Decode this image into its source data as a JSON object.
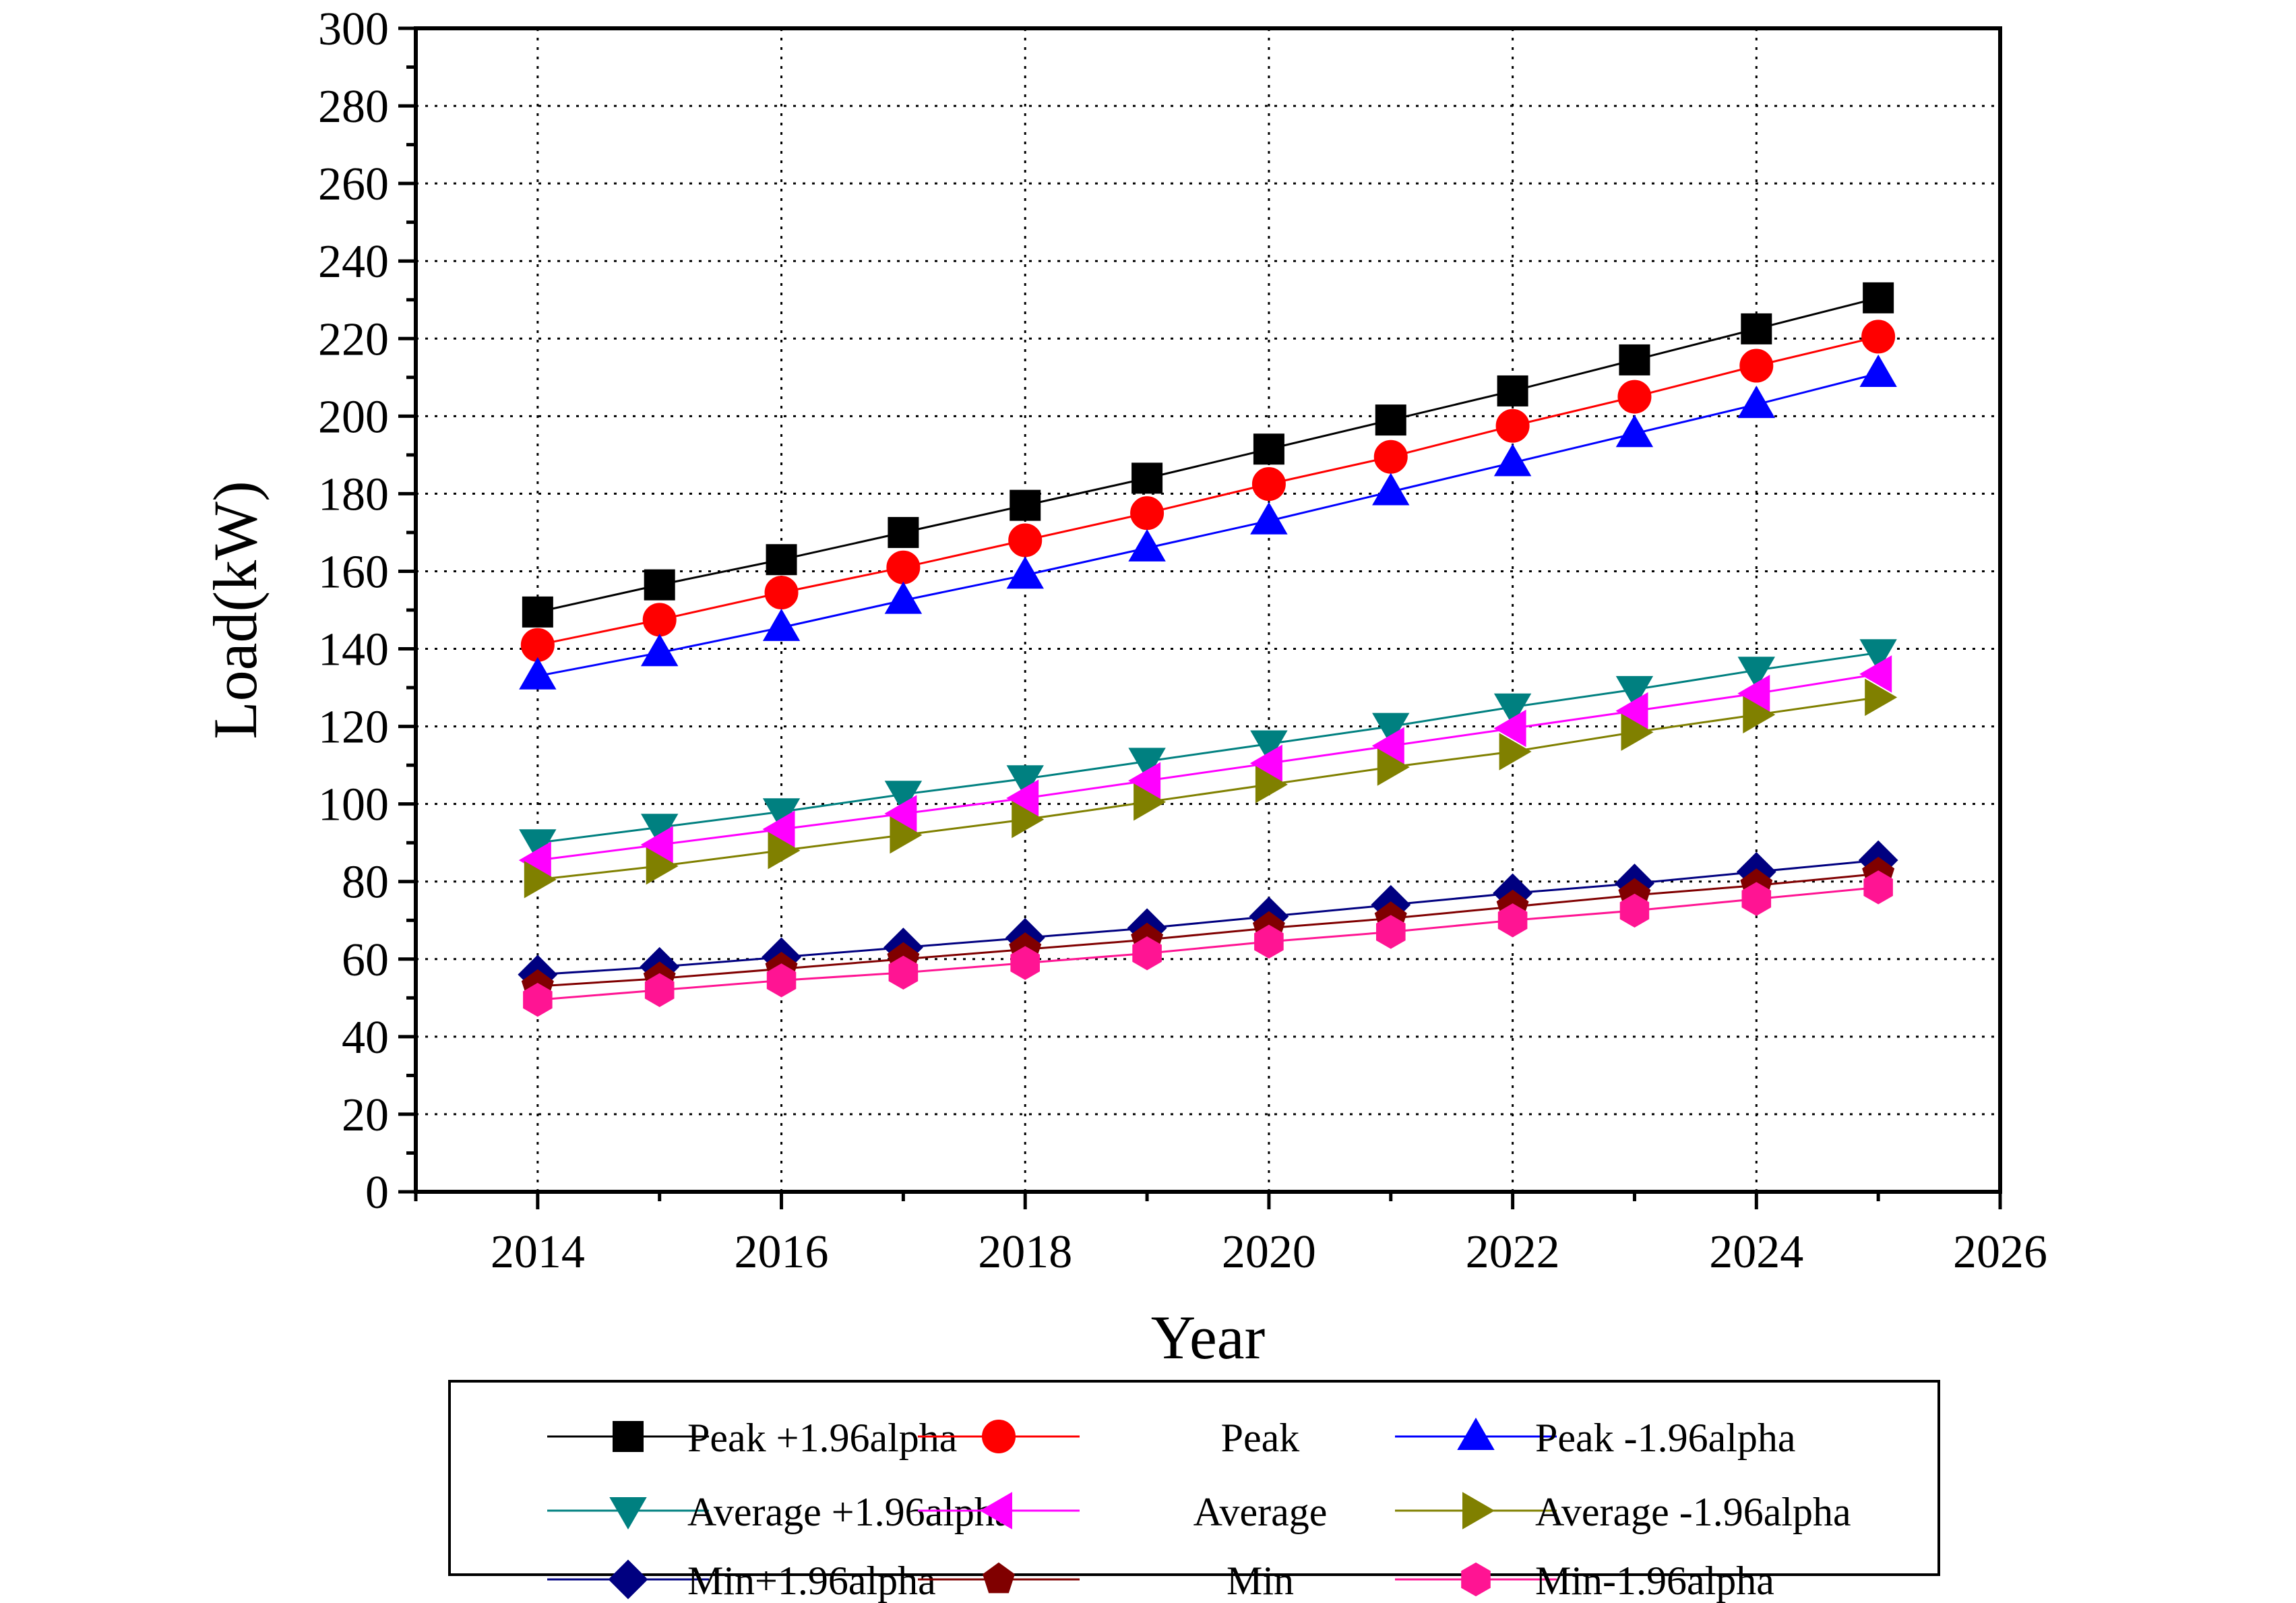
{
  "chart_data": {
    "type": "line",
    "title": "",
    "xlabel": "Year",
    "ylabel": "Load(kW)",
    "xlim": [
      2013,
      2026
    ],
    "ylim": [
      0,
      300
    ],
    "x_ticks": [
      2014,
      2016,
      2018,
      2020,
      2022,
      2024,
      2026
    ],
    "y_ticks": [
      0,
      20,
      40,
      60,
      80,
      100,
      120,
      140,
      160,
      180,
      200,
      220,
      240,
      260,
      280,
      300
    ],
    "grid": true,
    "legend_position": "bottom",
    "x": [
      2014,
      2015,
      2016,
      2017,
      2018,
      2019,
      2020,
      2021,
      2022,
      2023,
      2024,
      2025
    ],
    "series": [
      {
        "name": "Peak +1.96alpha",
        "color": "#000000",
        "marker": "square",
        "values": [
          149.5,
          156.5,
          163.0,
          170.0,
          177.0,
          184.0,
          191.5,
          199.0,
          206.5,
          214.5,
          222.5,
          230.5
        ]
      },
      {
        "name": "Peak",
        "color": "#ff0000",
        "marker": "circle",
        "values": [
          141.0,
          147.5,
          154.5,
          161.0,
          168.0,
          175.0,
          182.5,
          189.5,
          197.5,
          205.0,
          213.0,
          220.5
        ]
      },
      {
        "name": "Peak -1.96alpha",
        "color": "#0000ff",
        "marker": "triangle-up",
        "values": [
          133.0,
          139.0,
          145.5,
          152.5,
          159.0,
          166.0,
          173.0,
          180.5,
          188.0,
          195.5,
          203.0,
          211.0
        ]
      },
      {
        "name": "Average +1.96alpha",
        "color": "#008080",
        "marker": "triangle-down",
        "values": [
          90.0,
          94.0,
          98.0,
          102.5,
          106.5,
          111.0,
          115.5,
          120.0,
          125.0,
          129.5,
          134.5,
          139.0
        ]
      },
      {
        "name": "Average",
        "color": "#ff00ff",
        "marker": "triangle-left",
        "values": [
          85.5,
          89.5,
          93.5,
          97.5,
          101.5,
          106.0,
          110.5,
          115.0,
          119.5,
          124.0,
          128.5,
          133.5
        ]
      },
      {
        "name": "Average -1.96alpha",
        "color": "#808000",
        "marker": "triangle-right",
        "values": [
          80.5,
          84.0,
          88.0,
          92.0,
          96.0,
          100.5,
          105.0,
          109.5,
          113.5,
          118.5,
          123.0,
          127.5
        ]
      },
      {
        "name": "Min+1.96alpha",
        "color": "#000080",
        "marker": "diamond",
        "values": [
          56.0,
          58.0,
          60.5,
          63.0,
          65.5,
          68.0,
          71.0,
          74.0,
          77.0,
          79.5,
          82.5,
          85.5
        ]
      },
      {
        "name": "Min",
        "color": "#800000",
        "marker": "pentagon",
        "values": [
          53.0,
          55.0,
          57.5,
          60.0,
          62.5,
          65.0,
          68.0,
          70.5,
          73.5,
          76.5,
          79.0,
          82.0
        ]
      },
      {
        "name": "Min-1.96alpha",
        "color": "#ff1493",
        "marker": "hexagon",
        "values": [
          49.5,
          52.0,
          54.5,
          56.5,
          59.0,
          61.5,
          64.5,
          67.0,
          70.0,
          72.5,
          75.5,
          78.5
        ]
      }
    ]
  }
}
